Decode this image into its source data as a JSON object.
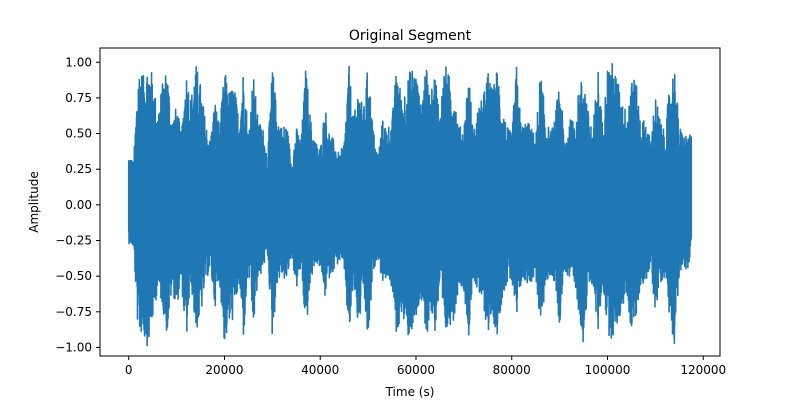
{
  "chart_data": {
    "type": "line",
    "title": "Original Segment",
    "xlabel": "Time (s)",
    "ylabel": "Amplitude",
    "xlim": [
      -6000,
      123500
    ],
    "ylim": [
      -1.06,
      1.1
    ],
    "xticks": [
      0,
      20000,
      40000,
      60000,
      80000,
      100000,
      120000
    ],
    "xtick_labels": [
      "0",
      "20000",
      "40000",
      "60000",
      "80000",
      "100000",
      "120000"
    ],
    "yticks": [
      -1.0,
      -0.75,
      -0.5,
      -0.25,
      0.0,
      0.25,
      0.5,
      0.75,
      1.0
    ],
    "ytick_labels": [
      "−1.00",
      "−0.75",
      "−0.50",
      "−0.25",
      "0.00",
      "0.25",
      "0.50",
      "0.75",
      "1.00"
    ],
    "grid": false,
    "series": [
      {
        "color": "#1f77b4",
        "x_range": [
          0,
          117500
        ],
        "envelope": {
          "x": [
            0,
            1000,
            2000,
            2500,
            3000,
            4000,
            5000,
            6000,
            7000,
            8000,
            9000,
            10000,
            11000,
            12000,
            13000,
            14000,
            15000,
            16000,
            17000,
            18000,
            19000,
            20000,
            21000,
            22000,
            23000,
            24000,
            25000,
            26000,
            27000,
            28000,
            29000,
            30000,
            31000,
            32000,
            33000,
            34000,
            35000,
            36000,
            37000,
            38000,
            39000,
            40000,
            41000,
            42000,
            43000,
            44000,
            45000,
            46000,
            47000,
            48000,
            49000,
            50000,
            51000,
            52000,
            53000,
            54000,
            55000,
            56000,
            57000,
            58000,
            59000,
            60000,
            61000,
            62000,
            63000,
            64000,
            65000,
            66000,
            67000,
            68000,
            69000,
            70000,
            71000,
            72000,
            73000,
            74000,
            75000,
            76000,
            77000,
            78000,
            79000,
            80000,
            81000,
            82000,
            83000,
            84000,
            85000,
            86000,
            87000,
            88000,
            89000,
            90000,
            91000,
            92000,
            93000,
            94000,
            95000,
            96000,
            97000,
            98000,
            99000,
            100000,
            101000,
            102000,
            103000,
            104000,
            105000,
            106000,
            107000,
            108000,
            109000,
            110000,
            111000,
            112000,
            113000,
            114000,
            115000,
            116000,
            117000,
            117500
          ],
          "max": [
            0.37,
            0.3,
            0.95,
            0.98,
            0.9,
            1.0,
            0.92,
            0.65,
            0.85,
            0.98,
            0.6,
            0.7,
            0.5,
            0.95,
            0.75,
            1.0,
            0.85,
            0.6,
            0.45,
            0.75,
            0.55,
            0.95,
            0.8,
            0.85,
            0.62,
            0.98,
            0.5,
            0.95,
            0.6,
            0.55,
            0.35,
            0.98,
            0.65,
            0.55,
            0.58,
            0.3,
            0.55,
            0.45,
            0.98,
            0.6,
            0.45,
            0.4,
            0.7,
            0.5,
            0.45,
            0.35,
            0.45,
            0.98,
            0.6,
            0.85,
            0.65,
            1.0,
            0.55,
            0.35,
            0.6,
            0.55,
            0.6,
            1.0,
            0.75,
            0.85,
            0.98,
            0.95,
            0.7,
            1.0,
            0.75,
            0.95,
            0.65,
            1.0,
            0.9,
            0.8,
            0.55,
            0.55,
            0.95,
            0.5,
            0.7,
            0.75,
            0.95,
            0.8,
            0.98,
            0.7,
            0.55,
            0.5,
            0.98,
            0.55,
            0.6,
            0.55,
            0.48,
            0.95,
            0.65,
            0.5,
            0.6,
            0.9,
            0.45,
            0.6,
            0.6,
            0.8,
            0.95,
            0.65,
            0.55,
            0.98,
            0.55,
            0.98,
            1.0,
            0.9,
            0.75,
            0.65,
            0.95,
            0.85,
            0.6,
            0.6,
            0.45,
            0.78,
            0.6,
            0.5,
            0.85,
            0.98,
            0.55,
            0.5,
            0.5,
            0.48
          ],
          "min": [
            -0.27,
            -0.3,
            -0.93,
            -0.9,
            -0.92,
            -1.0,
            -0.82,
            -0.6,
            -0.7,
            -0.92,
            -0.6,
            -0.72,
            -0.55,
            -0.98,
            -0.55,
            -0.9,
            -0.8,
            -0.55,
            -0.45,
            -0.72,
            -0.55,
            -0.99,
            -0.85,
            -0.8,
            -0.55,
            -0.95,
            -0.45,
            -0.88,
            -0.55,
            -0.45,
            -0.35,
            -0.95,
            -0.55,
            -0.5,
            -0.55,
            -0.35,
            -0.6,
            -0.45,
            -0.9,
            -0.55,
            -0.4,
            -0.45,
            -0.65,
            -0.5,
            -0.45,
            -0.4,
            -0.45,
            -0.95,
            -0.55,
            -0.9,
            -0.6,
            -1.0,
            -0.5,
            -0.35,
            -0.55,
            -0.5,
            -0.6,
            -0.95,
            -0.75,
            -0.95,
            -0.9,
            -0.85,
            -0.65,
            -0.98,
            -0.75,
            -0.9,
            -0.6,
            -0.95,
            -0.85,
            -0.8,
            -0.55,
            -0.6,
            -0.92,
            -0.5,
            -0.65,
            -0.7,
            -0.9,
            -0.8,
            -0.92,
            -0.65,
            -0.55,
            -0.55,
            -0.85,
            -0.55,
            -0.55,
            -0.55,
            -0.5,
            -0.9,
            -0.6,
            -0.5,
            -0.55,
            -0.85,
            -0.45,
            -0.55,
            -0.6,
            -0.75,
            -0.98,
            -0.6,
            -0.55,
            -0.92,
            -0.55,
            -0.9,
            -0.95,
            -0.85,
            -0.75,
            -0.62,
            -0.9,
            -0.8,
            -0.55,
            -0.55,
            -0.45,
            -0.75,
            -0.55,
            -0.5,
            -0.8,
            -0.98,
            -0.5,
            -0.45,
            -0.45,
            -0.3
          ]
        }
      }
    ]
  }
}
